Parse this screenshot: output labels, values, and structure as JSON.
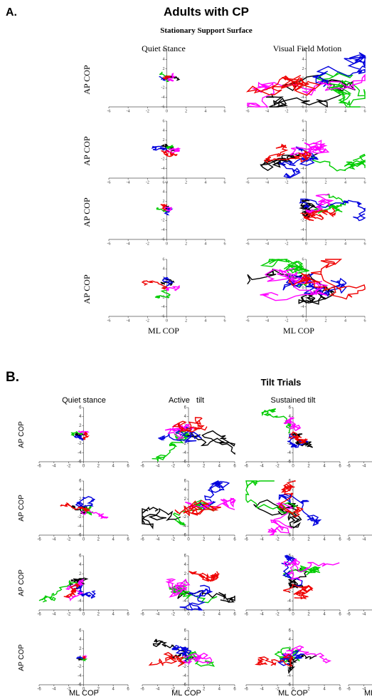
{
  "panel_a": {
    "label": "A.",
    "title": "Adults with CP",
    "subtitle": "Stationary Support Surface",
    "columns": [
      "Quiet Stance",
      "Visual Field Motion"
    ],
    "y_label": "AP COP",
    "x_label": "ML COP",
    "ticks": [
      -6,
      -4,
      -2,
      0,
      2,
      4,
      6
    ]
  },
  "panel_b": {
    "label": "B.",
    "title": "Tilt Trials",
    "columns": [
      "Quiet stance",
      "Active   tilt",
      "Sustained tilt"
    ],
    "y_label": "AP COP",
    "x_label": "ML COP",
    "ticks": [
      -6,
      -4,
      -2,
      0,
      2,
      4,
      6
    ]
  },
  "trace_colors": [
    "#000000",
    "#00cc00",
    "#0000dd",
    "#ff00ff",
    "#ee0000"
  ]
}
